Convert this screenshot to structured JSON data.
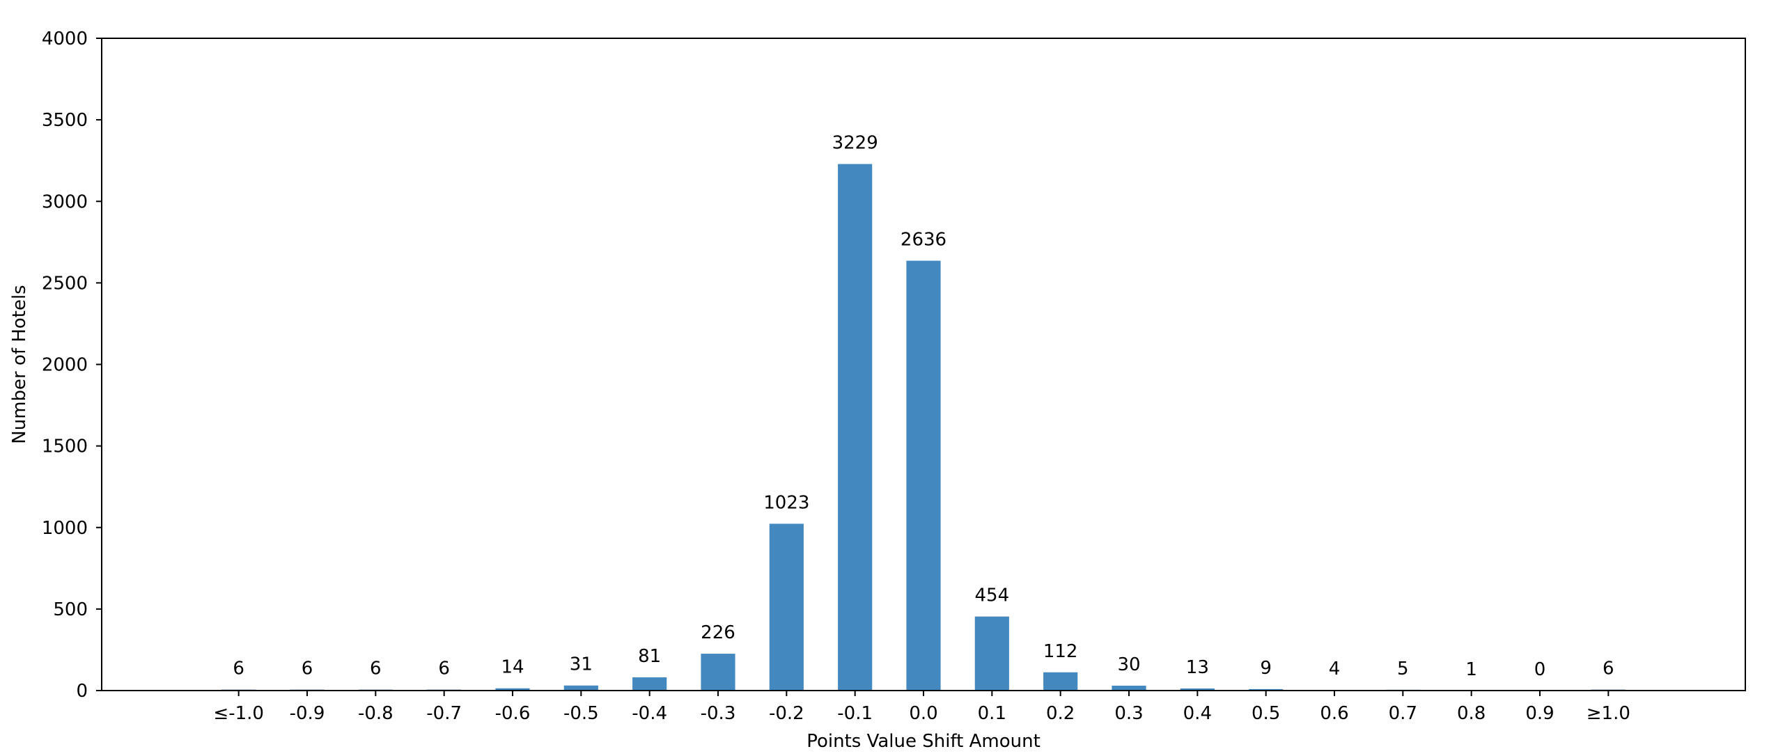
{
  "chart_data": {
    "type": "bar",
    "title": "",
    "xlabel": "Points Value Shift Amount",
    "ylabel": "Number of Hotels",
    "categories": [
      "≤-1.0",
      "-0.9",
      "-0.8",
      "-0.7",
      "-0.6",
      "-0.5",
      "-0.4",
      "-0.3",
      "-0.2",
      "-0.1",
      "0.0",
      "0.1",
      "0.2",
      "0.3",
      "0.4",
      "0.5",
      "0.6",
      "0.7",
      "0.8",
      "0.9",
      "≥1.0"
    ],
    "values": [
      6,
      6,
      6,
      6,
      14,
      31,
      81,
      226,
      1023,
      3229,
      2636,
      454,
      112,
      30,
      13,
      9,
      4,
      5,
      1,
      0,
      6
    ],
    "ylim": [
      0,
      4000
    ],
    "yticks": [
      0,
      500,
      1000,
      1500,
      2000,
      2500,
      3000,
      3500,
      4000
    ],
    "xlim": [
      -2,
      22
    ],
    "bar_color": "#4389bf",
    "grid": false,
    "legend": "none",
    "data_labels": true
  }
}
